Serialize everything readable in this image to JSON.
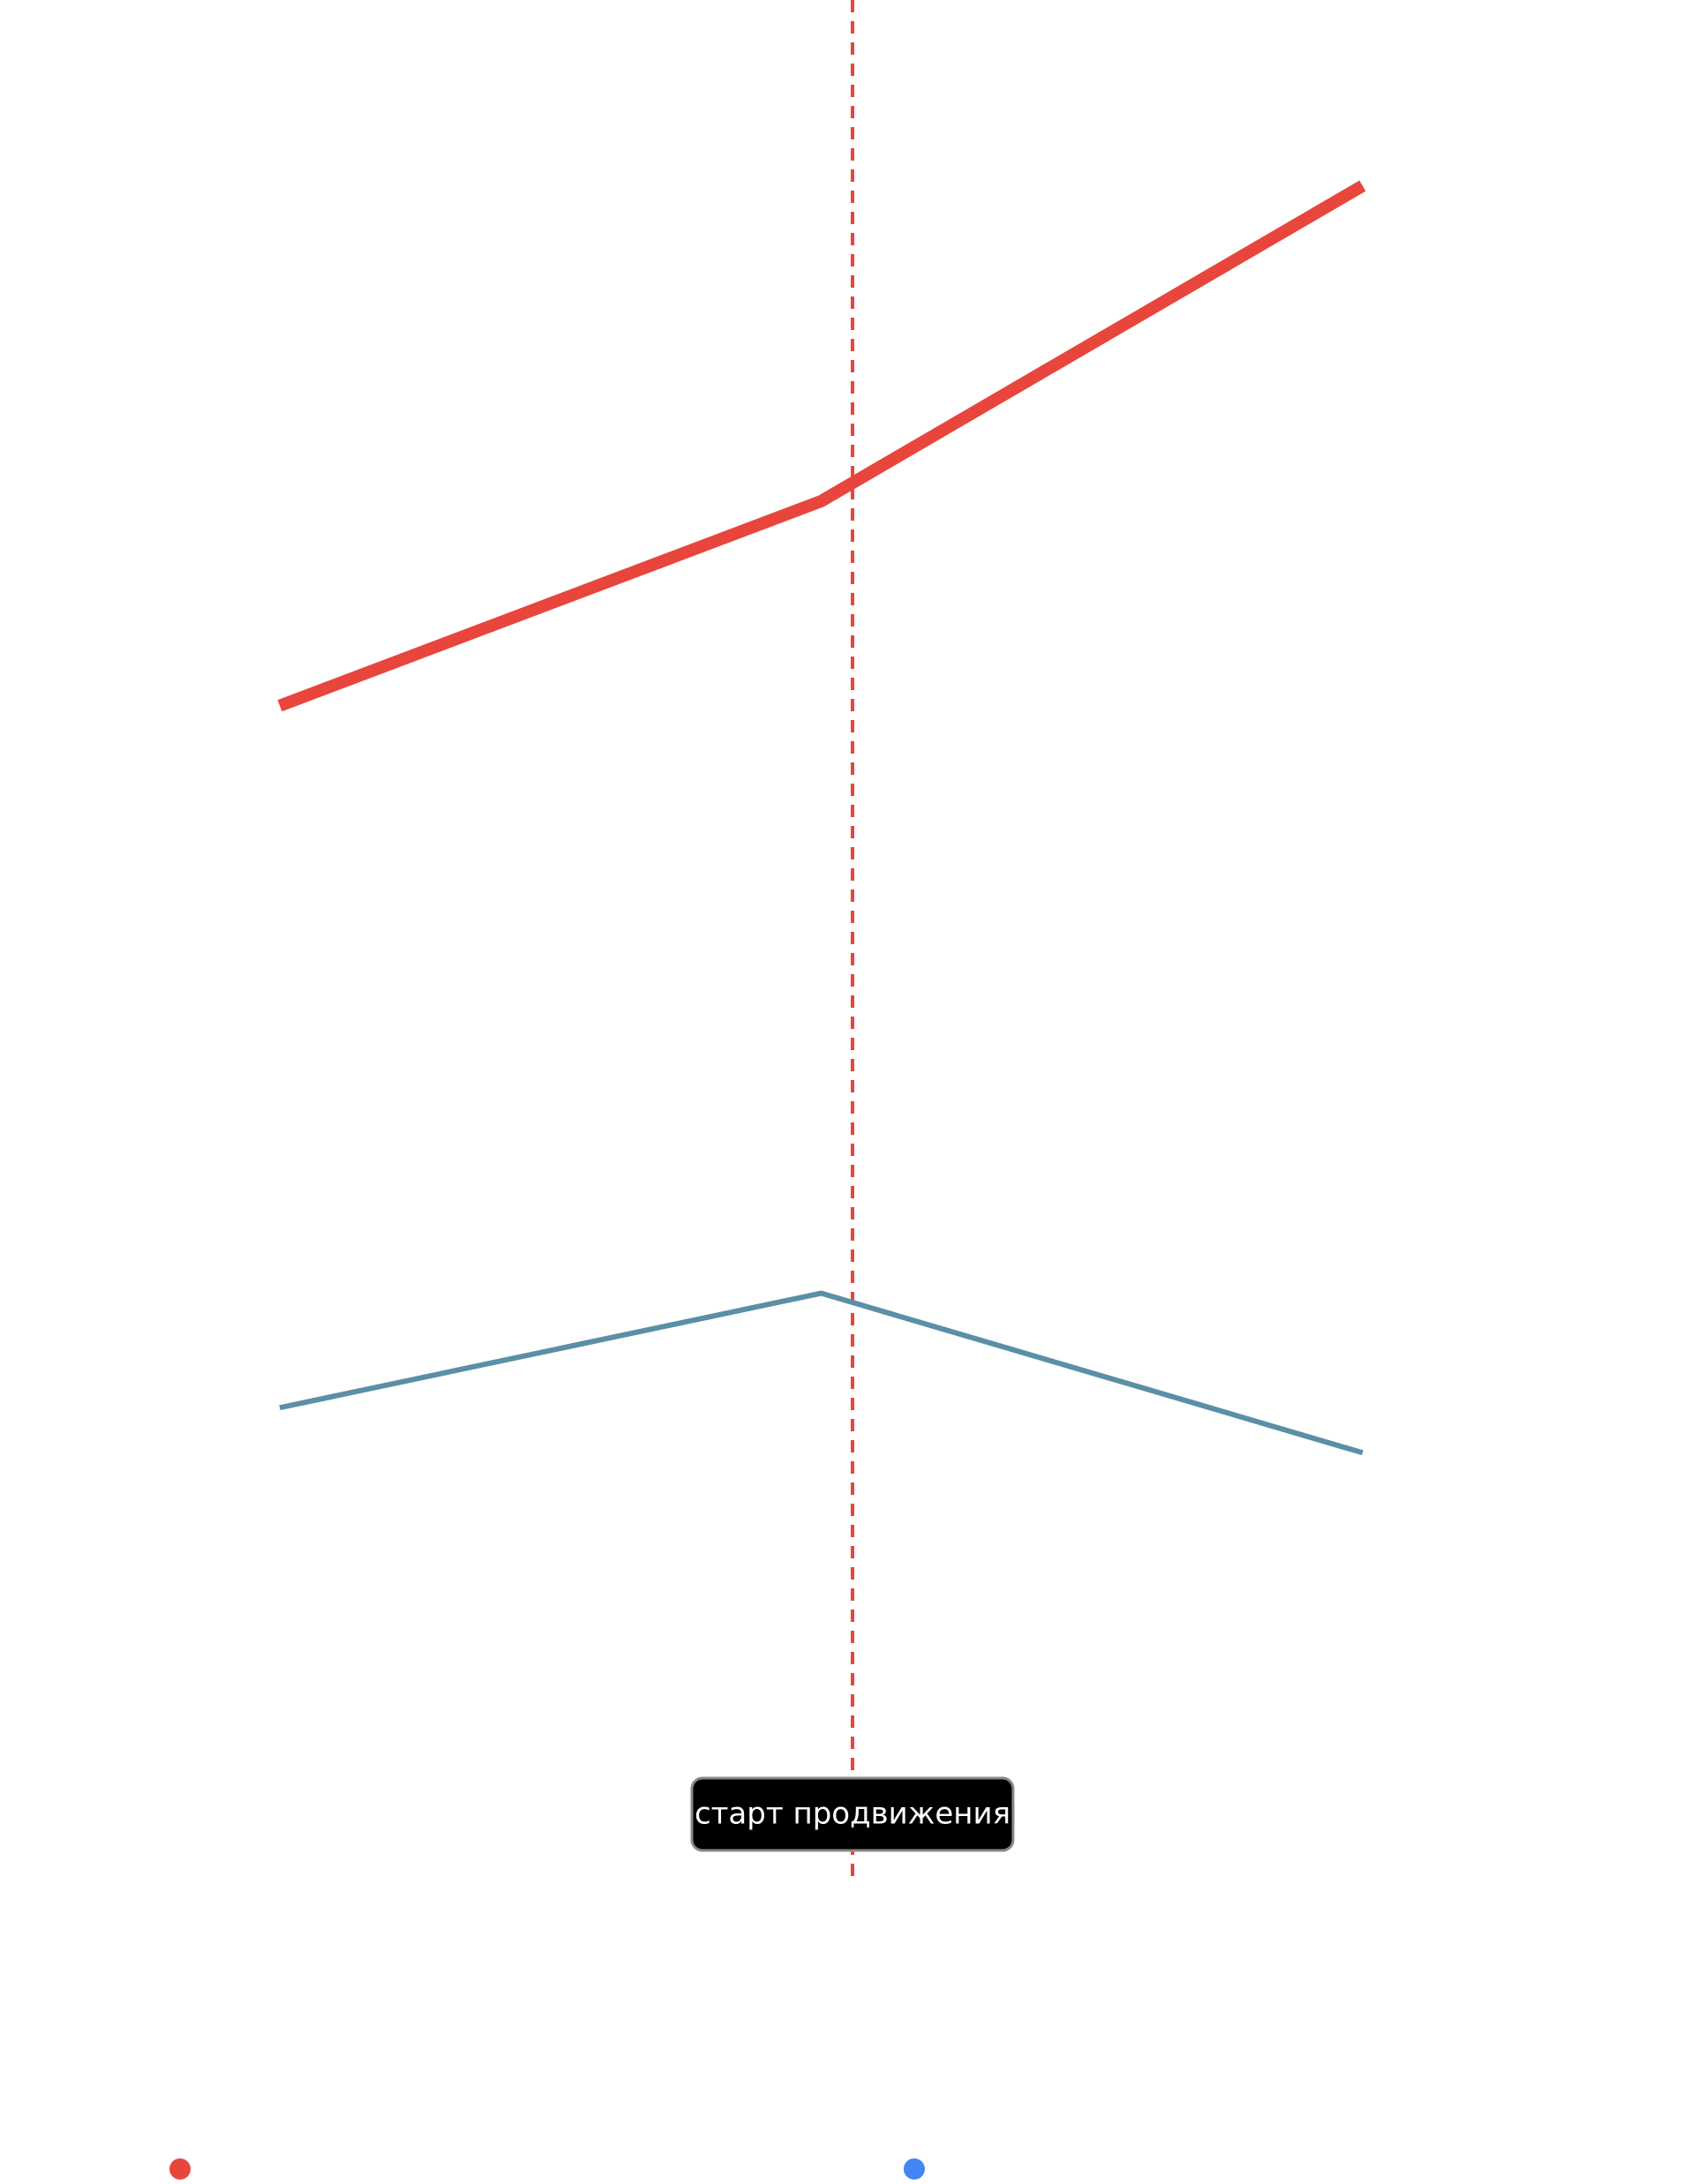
{
  "chart_data": {
    "type": "line",
    "categories": [
      null,
      null,
      null
    ],
    "series": [
      {
        "color": "#e8453c",
        "legend_color": "#e8453c",
        "values": [
          62.4,
          73.3,
          90.1
        ]
      },
      {
        "color": "#5b8fa8",
        "legend_color": "#4285f4",
        "values": [
          25.0,
          31.1,
          22.6
        ]
      }
    ],
    "ylim": [
      0,
      100
    ],
    "annotation": "старт продвижения"
  }
}
